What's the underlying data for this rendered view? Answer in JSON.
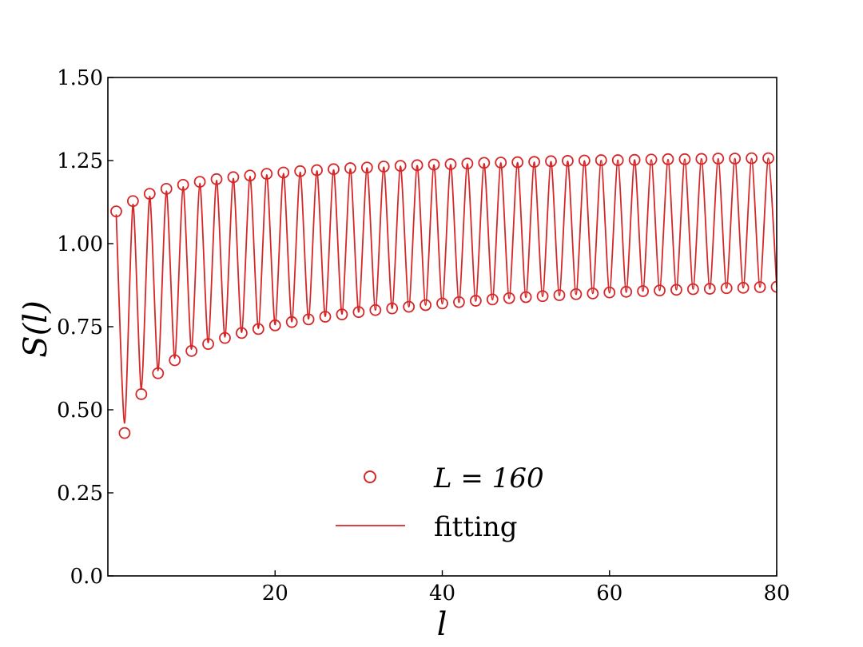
{
  "chart_data": {
    "type": "scatter",
    "title": "",
    "xlabel": "l",
    "ylabel": "S(l)",
    "xlim": [
      0,
      80
    ],
    "ylim": [
      0,
      1.5
    ],
    "x_ticks": [
      20,
      40,
      60,
      80
    ],
    "x_tick_labels": [
      "20",
      "40",
      "60",
      "80"
    ],
    "y_ticks": [
      0.0,
      0.25,
      0.5,
      0.75,
      1.0,
      1.25,
      1.5
    ],
    "y_tick_labels": [
      "0.0",
      "0.25",
      "0.50",
      "0.75",
      "1.00",
      "1.25",
      "1.50"
    ],
    "grid": false,
    "legend_position": "lower-center",
    "colors": {
      "series": "#d62728"
    },
    "series": [
      {
        "name": "L = 160",
        "marker": "open-circle",
        "x": [
          1,
          2,
          3,
          4,
          5,
          6,
          7,
          8,
          9,
          10,
          11,
          12,
          13,
          14,
          15,
          16,
          17,
          18,
          19,
          20,
          21,
          22,
          23,
          24,
          25,
          26,
          27,
          28,
          29,
          30,
          31,
          32,
          33,
          34,
          35,
          36,
          37,
          38,
          39,
          40,
          41,
          42,
          43,
          44,
          45,
          46,
          47,
          48,
          49,
          50,
          51,
          52,
          53,
          54,
          55,
          56,
          57,
          58,
          59,
          60,
          61,
          62,
          63,
          64,
          65,
          66,
          67,
          68,
          69,
          70,
          71,
          72,
          73,
          74,
          75,
          76,
          77,
          78,
          79,
          80
        ],
        "y": [
          1.097,
          0.43,
          1.128,
          0.547,
          1.15,
          0.61,
          1.165,
          0.649,
          1.177,
          0.677,
          1.186,
          0.698,
          1.194,
          0.716,
          1.2,
          0.731,
          1.205,
          0.743,
          1.21,
          0.754,
          1.214,
          0.764,
          1.218,
          0.772,
          1.221,
          0.78,
          1.224,
          0.787,
          1.227,
          0.794,
          1.229,
          0.8,
          1.232,
          0.805,
          1.234,
          0.81,
          1.236,
          0.815,
          1.238,
          0.82,
          1.239,
          0.824,
          1.241,
          0.828,
          1.243,
          0.832,
          1.244,
          0.836,
          1.245,
          0.839,
          1.246,
          0.842,
          1.248,
          0.845,
          1.249,
          0.848,
          1.25,
          0.85,
          1.251,
          0.853,
          1.251,
          0.855,
          1.252,
          0.857,
          1.253,
          0.859,
          1.254,
          0.861,
          1.254,
          0.863,
          1.255,
          0.864,
          1.256,
          0.866,
          1.256,
          0.867,
          1.257,
          0.869,
          1.257,
          0.87
        ]
      },
      {
        "name": "fitting",
        "marker": "line",
        "x": [
          1,
          2,
          3,
          4,
          5,
          6,
          7,
          8,
          9,
          10,
          11,
          12,
          13,
          14,
          15,
          16,
          17,
          18,
          19,
          20,
          21,
          22,
          23,
          24,
          25,
          26,
          27,
          28,
          29,
          30,
          31,
          32,
          33,
          34,
          35,
          36,
          37,
          38,
          39,
          40,
          41,
          42,
          43,
          44,
          45,
          46,
          47,
          48,
          49,
          50,
          51,
          52,
          53,
          54,
          55,
          56,
          57,
          58,
          59,
          60,
          61,
          62,
          63,
          64,
          65,
          66,
          67,
          68,
          69,
          70,
          71,
          72,
          73,
          74,
          75,
          76,
          77,
          78,
          79,
          80
        ],
        "y": [
          1.088,
          0.46,
          1.118,
          0.562,
          1.142,
          0.618,
          1.158,
          0.655,
          1.171,
          0.682,
          1.181,
          0.702,
          1.19,
          0.719,
          1.196,
          0.733,
          1.202,
          0.745,
          1.207,
          0.756,
          1.211,
          0.765,
          1.215,
          0.773,
          1.219,
          0.781,
          1.222,
          0.788,
          1.225,
          0.794,
          1.228,
          0.8,
          1.23,
          0.805,
          1.233,
          0.81,
          1.235,
          0.815,
          1.237,
          0.819,
          1.238,
          0.823,
          1.24,
          0.827,
          1.241,
          0.831,
          1.243,
          0.835,
          1.244,
          0.838,
          1.245,
          0.841,
          1.247,
          0.844,
          1.248,
          0.847,
          1.249,
          0.85,
          1.25,
          0.852,
          1.251,
          0.854,
          1.252,
          0.857,
          1.252,
          0.859,
          1.253,
          0.861,
          1.254,
          0.863,
          1.255,
          0.864,
          1.255,
          0.866,
          1.256,
          0.867,
          1.256,
          0.869,
          1.257,
          0.87
        ]
      }
    ],
    "legend": {
      "entries": [
        {
          "label": "L = 160",
          "marker": "open-circle"
        },
        {
          "label": "fitting",
          "marker": "line"
        }
      ]
    }
  }
}
